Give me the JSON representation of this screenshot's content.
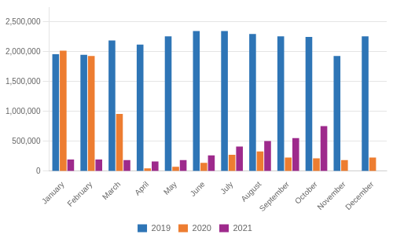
{
  "chart_data": {
    "type": "bar",
    "categories": [
      "January",
      "February",
      "March",
      "April",
      "May",
      "June",
      "July",
      "August",
      "September",
      "October",
      "November",
      "December"
    ],
    "series": [
      {
        "name": "2019",
        "color": "#2e75b6",
        "values": [
          1960000,
          1950000,
          2190000,
          2120000,
          2260000,
          2350000,
          2350000,
          2300000,
          2260000,
          2250000,
          1930000,
          2260000
        ]
      },
      {
        "name": "2020",
        "color": "#ed7d31",
        "values": [
          2020000,
          1930000,
          960000,
          50000,
          75000,
          140000,
          275000,
          330000,
          230000,
          215000,
          185000,
          230000
        ]
      },
      {
        "name": "2021",
        "color": "#9e2a8c",
        "values": [
          195000,
          195000,
          185000,
          165000,
          185000,
          265000,
          415000,
          505000,
          555000,
          755000,
          0,
          0
        ]
      }
    ],
    "ylim": [
      0,
      2750000
    ],
    "yticks": [
      0,
      {
        "value": 500000,
        "label": "500,000"
      },
      {
        "value": 1000000,
        "label": "1,000,000"
      },
      {
        "value": 1500000,
        "label": "1,500,000"
      },
      {
        "value": 2000000,
        "label": "2,000,000"
      },
      {
        "value": 2500000,
        "label": "2,500,000"
      }
    ],
    "grid": true,
    "legend": "bottom"
  }
}
